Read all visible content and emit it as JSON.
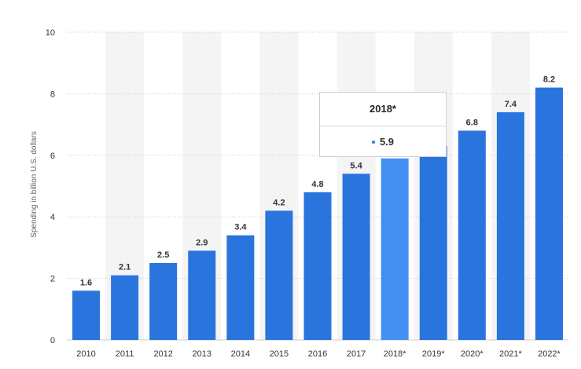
{
  "colors": {
    "bar": "#2a74de",
    "bar_highlight": "#4390f2",
    "band": "#f4f4f4",
    "grid": "#cccccc"
  },
  "chart_data": {
    "type": "bar",
    "categories": [
      "2010",
      "2011",
      "2012",
      "2013",
      "2014",
      "2015",
      "2016",
      "2017",
      "2018*",
      "2019*",
      "2020*",
      "2021*",
      "2022*"
    ],
    "values": [
      1.6,
      2.1,
      2.5,
      2.9,
      3.4,
      4.2,
      4.8,
      5.4,
      5.9,
      6.3,
      6.8,
      7.4,
      8.2
    ],
    "value_labels": [
      "1.6",
      "2.1",
      "2.5",
      "2.9",
      "3.4",
      "4.2",
      "4.8",
      "5.4",
      "",
      "",
      "6.8",
      "7.4",
      "8.2"
    ],
    "ylabel": "Spending in billion U.S. dollars",
    "xlabel": "",
    "title": "",
    "ylim": [
      0,
      10
    ],
    "yticks": [
      0,
      2,
      4,
      6,
      8,
      10
    ],
    "grid": true,
    "highlighted_index": 8
  },
  "tooltip": {
    "title": "2018*",
    "value": "5.9"
  }
}
